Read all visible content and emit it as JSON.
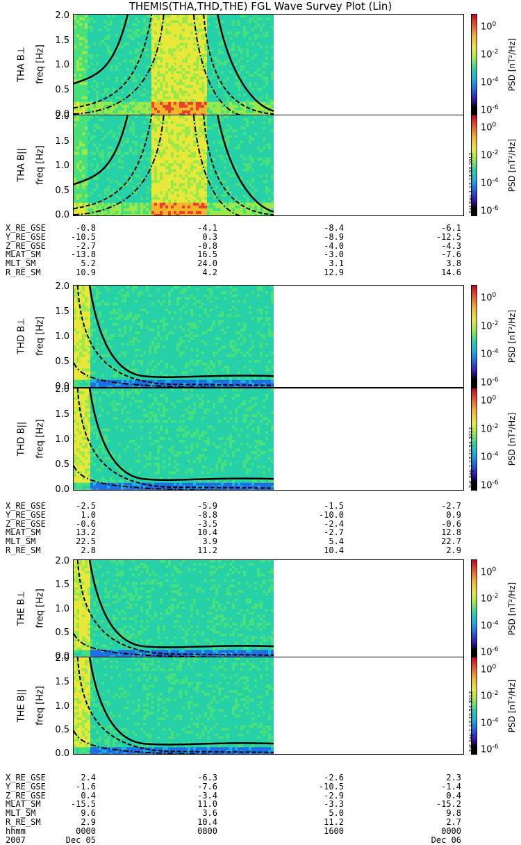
{
  "title": "THEMIS(THA,THD,THE) FGL Wave Survey Plot (Lin)",
  "colorbar": {
    "label": "PSD [nT²/Hz]",
    "ticks": [
      "10",
      "10",
      "10",
      "10"
    ],
    "exponents": [
      "0",
      "-2",
      "-4",
      "-6"
    ]
  },
  "y_ticks": [
    "2.0",
    "1.5",
    "1.0",
    "0.5",
    "0.0"
  ],
  "probes": [
    {
      "panels": [
        {
          "label": "THA B⊥",
          "freq": "freq [Hz]"
        },
        {
          "label": "THA B||",
          "freq": "freq [Hz]",
          "stamp": "Sat Sep 1 17:12:53 2012"
        }
      ],
      "ephemeris": [
        {
          "name": "X_RE_GSE",
          "values": [
            "-0.8",
            "-4.1",
            "-8.4",
            "-6.1"
          ]
        },
        {
          "name": "Y_RE_GSE",
          "values": [
            "-10.5",
            "0.3",
            "-8.9",
            "-12.5"
          ]
        },
        {
          "name": "Z_RE_GSE",
          "values": [
            "-2.7",
            "-0.8",
            "-4.0",
            "-4.3"
          ]
        },
        {
          "name": "MLAT_SM",
          "values": [
            "-13.8",
            "16.5",
            "-3.0",
            "-7.6"
          ]
        },
        {
          "name": "MLT_SM",
          "values": [
            "5.2",
            "24.0",
            "3.1",
            "3.8"
          ]
        },
        {
          "name": "R_RE_SM",
          "values": [
            "10.9",
            "4.2",
            "12.9",
            "14.6"
          ]
        }
      ]
    },
    {
      "panels": [
        {
          "label": "THD B⊥",
          "freq": "freq [Hz]"
        },
        {
          "label": "THD B||",
          "freq": "freq [Hz]",
          "stamp": "Sat Sep 1 17:12:54 2012"
        }
      ],
      "ephemeris": [
        {
          "name": "X_RE_GSE",
          "values": [
            "-2.5",
            "-5.9",
            "-1.5",
            "-2.7"
          ]
        },
        {
          "name": "Y_RE_GSE",
          "values": [
            "1.0",
            "-8.8",
            "-10.0",
            "0.9"
          ]
        },
        {
          "name": "Z_RE_GSE",
          "values": [
            "-0.6",
            "-3.5",
            "-2.4",
            "-0.6"
          ]
        },
        {
          "name": "MLAT_SM",
          "values": [
            "13.2",
            "10.4",
            "-2.7",
            "12.8"
          ]
        },
        {
          "name": "MLT_SM",
          "values": [
            "22.5",
            "3.9",
            "5.4",
            "22.7"
          ]
        },
        {
          "name": "R_RE_SM",
          "values": [
            "2.8",
            "11.2",
            "10.4",
            "2.9"
          ]
        }
      ]
    },
    {
      "panels": [
        {
          "label": "THE B⊥",
          "freq": "freq [Hz]"
        },
        {
          "label": "THE B||",
          "freq": "freq [Hz]",
          "stamp": "Sat Sep 1 17:12:54 2012"
        }
      ],
      "ephemeris": [
        {
          "name": "X_RE_GSE",
          "values": [
            "2.4",
            "-6.3",
            "-2.6",
            "2.3"
          ]
        },
        {
          "name": "Y_RE_GSE",
          "values": [
            "-1.6",
            "-7.6",
            "-10.5",
            "-1.4"
          ]
        },
        {
          "name": "Z_RE_GSE",
          "values": [
            "0.4",
            "-3.4",
            "-2.9",
            "0.4"
          ]
        },
        {
          "name": "MLAT_SM",
          "values": [
            "-15.5",
            "11.0",
            "-3.3",
            "-15.2"
          ]
        },
        {
          "name": "MLT_SM",
          "values": [
            "9.6",
            "3.6",
            "5.0",
            "9.8"
          ]
        },
        {
          "name": "R_RE_SM",
          "values": [
            "2.9",
            "10.4",
            "11.2",
            "2.7"
          ]
        },
        {
          "name": "hhmm",
          "values": [
            "0000",
            "0800",
            "1600",
            "0000"
          ]
        },
        {
          "name": "2007",
          "values": [
            "Dec 05",
            "",
            "",
            "Dec 06"
          ]
        }
      ]
    }
  ],
  "chart_data": {
    "type": "heatmap",
    "title": "THEMIS(THA,THD,THE) FGL Wave Survey Plot (Lin)",
    "ylabel": "freq [Hz]",
    "ylim": [
      0,
      2.0
    ],
    "x_tick_labels": [
      "0000",
      "0800",
      "1600",
      "0000"
    ],
    "x_date_labels": [
      "Dec 05",
      "",
      "",
      "Dec 06"
    ],
    "data_coverage_hhmm": [
      "0000",
      "~1100"
    ],
    "colorbar": {
      "label": "PSD [nT^2/Hz]",
      "scale": "log",
      "ticks": [
        "10^0",
        "10^-2",
        "10^-4",
        "10^-6"
      ]
    },
    "panels": [
      "THA B⊥",
      "THA B||",
      "THD B⊥",
      "THD B||",
      "THE B⊥",
      "THE B||"
    ]
  }
}
